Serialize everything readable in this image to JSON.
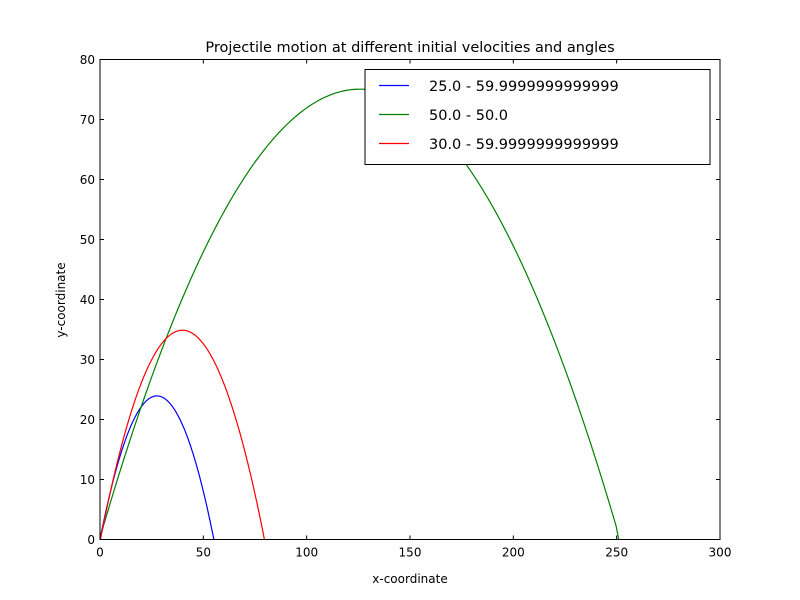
{
  "chart_data": {
    "type": "line",
    "title": "Projectile motion at different initial velocities and angles",
    "xlabel": "x-coordinate",
    "ylabel": "y-coordinate",
    "xlim": [
      0,
      300
    ],
    "ylim": [
      0,
      80
    ],
    "x_ticks": [
      0,
      50,
      100,
      150,
      200,
      250,
      300
    ],
    "y_ticks": [
      0,
      10,
      20,
      30,
      40,
      50,
      60,
      70,
      80
    ],
    "x_tick_labels": [
      "0",
      "50",
      "100",
      "150",
      "200",
      "250",
      "300"
    ],
    "y_tick_labels": [
      "0",
      "10",
      "20",
      "30",
      "40",
      "50",
      "60",
      "70",
      "80"
    ],
    "grid": false,
    "legend_position": "top-right",
    "series": [
      {
        "name": "25.0 - 59.9999999999999",
        "color": "#0000ff",
        "x": [
          0,
          5,
          10,
          15,
          20,
          25,
          27.6,
          30,
          35,
          40,
          45,
          50,
          55.2
        ],
        "y": [
          0,
          7.87,
          14.2,
          19.0,
          22.2,
          23.8,
          23.9,
          23.8,
          22.2,
          19.0,
          14.2,
          7.87,
          0
        ]
      },
      {
        "name": "50.0 - 50.0",
        "color": "#008000",
        "x": [
          0,
          20,
          40,
          60,
          80,
          100,
          125.5,
          150,
          170,
          190,
          210,
          230,
          251
        ],
        "y": [
          0,
          22.7,
          40.5,
          54.6,
          65.0,
          71.6,
          74.8,
          72.1,
          65.8,
          55.8,
          41.8,
          24.1,
          0
        ]
      },
      {
        "name": "30.0 - 59.9999999999999",
        "color": "#ff0000",
        "x": [
          0,
          5,
          10,
          15,
          20,
          25,
          30,
          35,
          39.7,
          45,
          50,
          55,
          60,
          65,
          70,
          75,
          79.5
        ],
        "y": [
          0,
          8.12,
          15.1,
          21.0,
          25.8,
          29.6,
          32.4,
          34.1,
          34.4,
          34.1,
          33.1,
          30.7,
          26.7,
          21.3,
          14.7,
          6.7,
          0
        ]
      }
    ]
  }
}
